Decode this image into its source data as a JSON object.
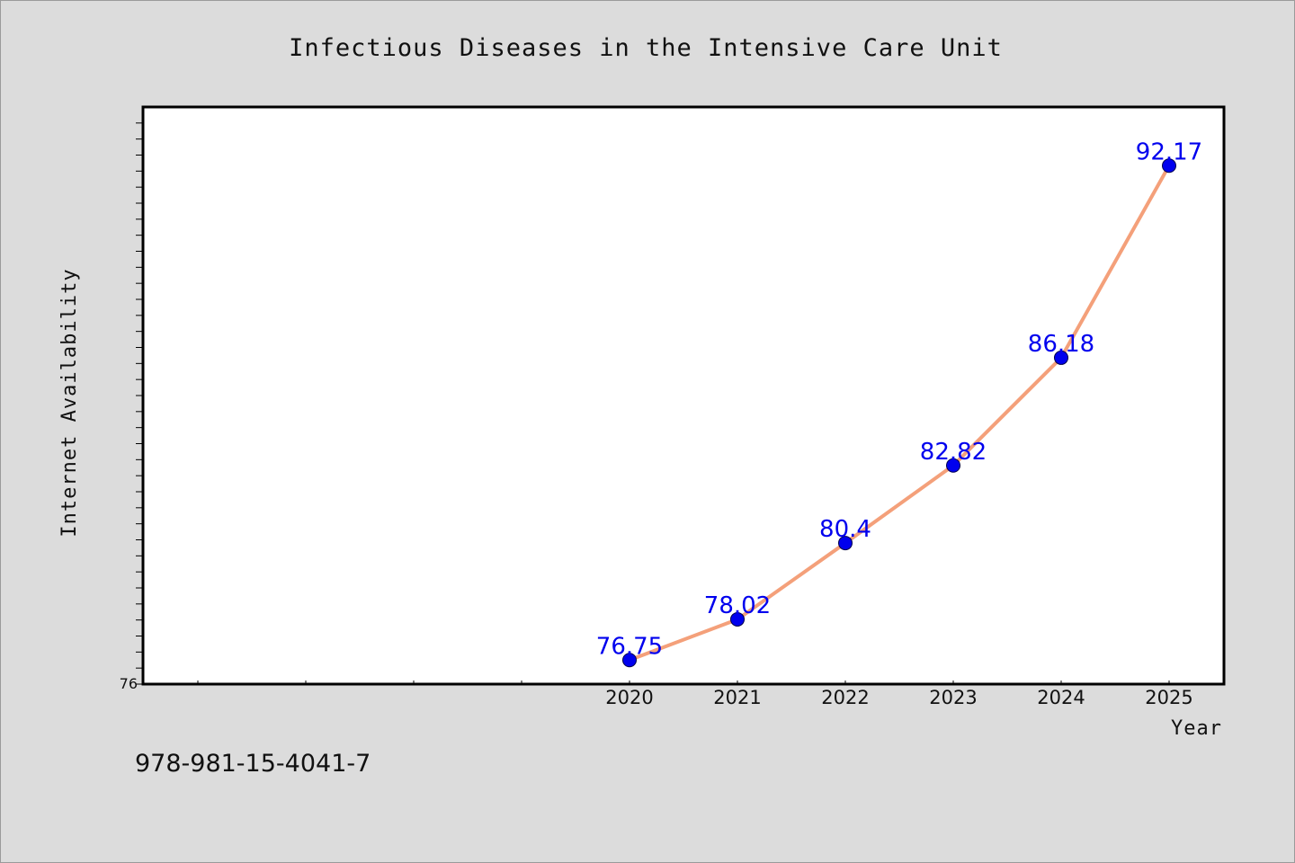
{
  "chart_data": {
    "type": "line",
    "title": "Infectious Diseases in the Intensive Care Unit",
    "xlabel": "Year",
    "ylabel": "Internet Availability",
    "categories": [
      "2020",
      "2021",
      "2022",
      "2023",
      "2024",
      "2025"
    ],
    "values": [
      76.75,
      78.02,
      80.4,
      82.82,
      86.18,
      92.17
    ],
    "y_tick_labels": [
      "76"
    ],
    "ylim": [
      76,
      94
    ],
    "grid": false,
    "line_color": "#f4a07a",
    "marker_color": "#0000ee",
    "label_color": "#0000ee"
  },
  "footer": {
    "isbn": "978-981-15-4041-7"
  }
}
